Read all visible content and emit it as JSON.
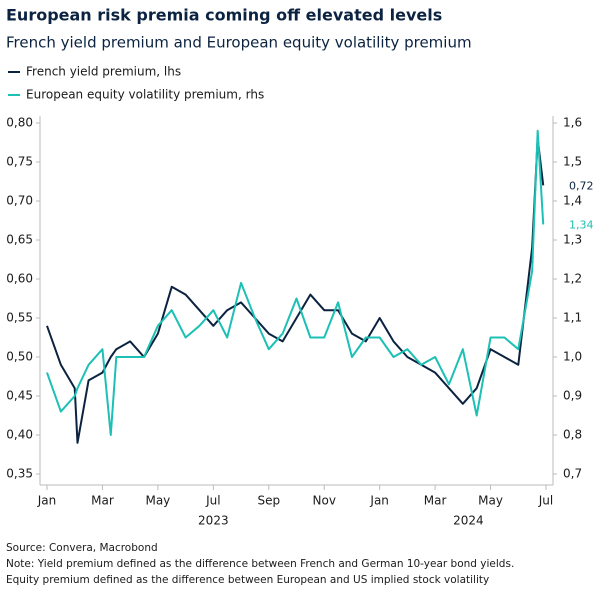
{
  "chart_data": {
    "type": "line",
    "title": "European risk premia coming off elevated levels",
    "subtitle": "French yield premium and European equity volatility premium",
    "x": [
      0,
      0.5,
      1,
      1.1,
      1.5,
      2,
      2.3,
      2.5,
      3,
      3.5,
      4,
      4.5,
      5,
      5.5,
      6,
      6.5,
      7,
      7.5,
      8,
      8.5,
      9,
      9.5,
      10,
      10.5,
      11,
      11.5,
      12,
      12.5,
      13,
      13.5,
      14,
      14.5,
      15,
      15.5,
      16,
      16.5,
      17,
      17.5,
      17.7,
      17.9
    ],
    "xlim": [
      0,
      18
    ],
    "xticks": [
      {
        "value": 0,
        "label": "Jan"
      },
      {
        "value": 2,
        "label": "Mar"
      },
      {
        "value": 4,
        "label": "May"
      },
      {
        "value": 6,
        "label": "Jul"
      },
      {
        "value": 8,
        "label": "Sep"
      },
      {
        "value": 10,
        "label": "Nov"
      },
      {
        "value": 12,
        "label": "Jan"
      },
      {
        "value": 14,
        "label": "Mar"
      },
      {
        "value": 16,
        "label": "May"
      },
      {
        "value": 18,
        "label": "Jul"
      }
    ],
    "year_labels": [
      {
        "value": 6,
        "label": "2023"
      },
      {
        "value": 15.2,
        "label": "2024"
      }
    ],
    "ylim": [
      0.35,
      0.8
    ],
    "yticks": [
      {
        "value": 0.35,
        "label": "0,35"
      },
      {
        "value": 0.4,
        "label": "0,40"
      },
      {
        "value": 0.45,
        "label": "0,45"
      },
      {
        "value": 0.5,
        "label": "0,50"
      },
      {
        "value": 0.55,
        "label": "0,55"
      },
      {
        "value": 0.6,
        "label": "0,60"
      },
      {
        "value": 0.65,
        "label": "0,65"
      },
      {
        "value": 0.7,
        "label": "0,70"
      },
      {
        "value": 0.75,
        "label": "0,75"
      },
      {
        "value": 0.8,
        "label": "0,80"
      }
    ],
    "y2lim": [
      0.7,
      1.6
    ],
    "y2ticks": [
      {
        "value": 0.7,
        "label": "0,7"
      },
      {
        "value": 0.8,
        "label": "0,8"
      },
      {
        "value": 0.9,
        "label": "0,9"
      },
      {
        "value": 1.0,
        "label": "1,0"
      },
      {
        "value": 1.1,
        "label": "1,1"
      },
      {
        "value": 1.2,
        "label": "1,2"
      },
      {
        "value": 1.3,
        "label": "1,3"
      },
      {
        "value": 1.4,
        "label": "1,4"
      },
      {
        "value": 1.5,
        "label": "1,5"
      },
      {
        "value": 1.6,
        "label": "1,6"
      }
    ],
    "series": [
      {
        "name": "French yield premium, lhs",
        "color": "#0b2341",
        "values": [
          0.54,
          0.49,
          0.46,
          0.39,
          0.47,
          0.48,
          0.5,
          0.51,
          0.52,
          0.5,
          0.53,
          0.59,
          0.58,
          0.56,
          0.54,
          0.56,
          0.57,
          0.55,
          0.53,
          0.52,
          0.55,
          0.58,
          0.56,
          0.56,
          0.53,
          0.52,
          0.55,
          0.52,
          0.5,
          0.49,
          0.48,
          0.46,
          0.44,
          0.46,
          0.51,
          0.5,
          0.49,
          0.64,
          0.78,
          0.72
        ],
        "value_labels": [
          null,
          null,
          null,
          null,
          null,
          null,
          null,
          null,
          null,
          null,
          null,
          null,
          null,
          null,
          null,
          null,
          null,
          null,
          null,
          null,
          null,
          null,
          null,
          null,
          null,
          null,
          null,
          null,
          null,
          null,
          null,
          null,
          null,
          null,
          null,
          null,
          null,
          null,
          null,
          "0,72"
        ]
      },
      {
        "name": "European equity volatility premium, rhs",
        "color": "#1cc0b4",
        "axis": "y2",
        "values": [
          0.96,
          0.86,
          0.9,
          0.92,
          0.98,
          1.02,
          0.8,
          1.0,
          1.0,
          1.0,
          1.08,
          1.12,
          1.05,
          1.08,
          1.12,
          1.05,
          1.19,
          1.1,
          1.02,
          1.06,
          1.15,
          1.05,
          1.05,
          1.14,
          1.0,
          1.05,
          1.05,
          1.0,
          1.02,
          0.98,
          1.0,
          0.93,
          1.02,
          0.85,
          1.05,
          1.05,
          1.02,
          1.22,
          1.58,
          1.34
        ],
        "value_labels": [
          null,
          null,
          null,
          null,
          null,
          null,
          null,
          null,
          null,
          null,
          null,
          null,
          null,
          null,
          null,
          null,
          null,
          null,
          null,
          null,
          null,
          null,
          null,
          null,
          null,
          null,
          null,
          null,
          null,
          null,
          null,
          null,
          null,
          null,
          null,
          null,
          null,
          null,
          null,
          "1,34"
        ]
      }
    ],
    "footnotes": [
      "Source: Convera, Macrobond",
      "Note: Yield premium defined as the difference between French and German 10-year bond yields.",
      "Equity premium defined as the difference between European and US implied stock volatility"
    ]
  }
}
